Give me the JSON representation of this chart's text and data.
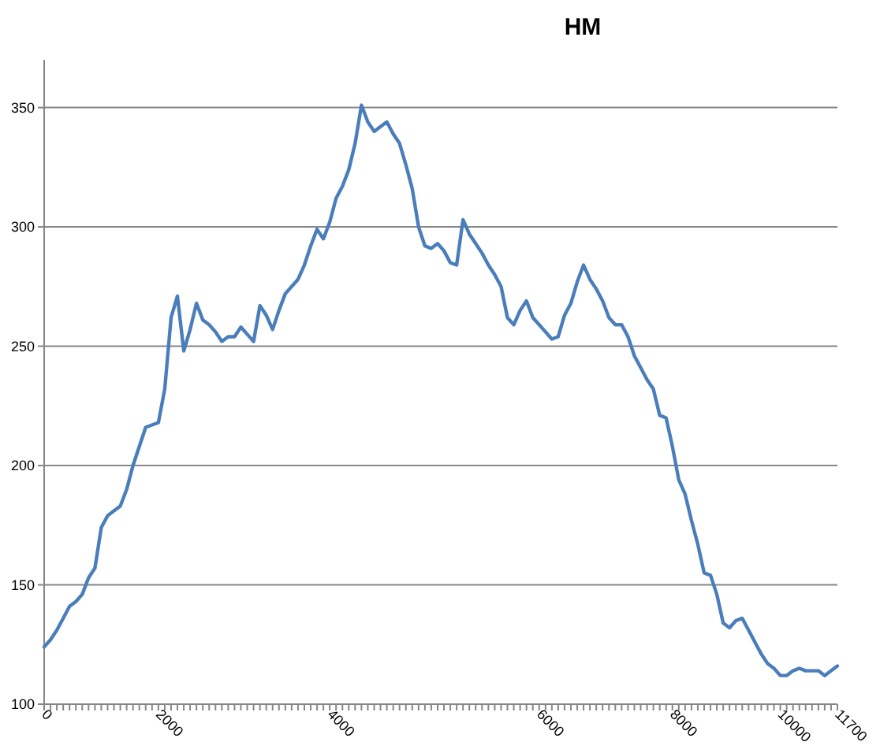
{
  "chart_data": {
    "type": "line",
    "title": "HM",
    "categories": [
      "0",
      null,
      null,
      null,
      null,
      null,
      null,
      null,
      null,
      null,
      null,
      null,
      null,
      null,
      null,
      null,
      null,
      null,
      "2000",
      null,
      null,
      null,
      null,
      null,
      null,
      null,
      null,
      null,
      null,
      null,
      null,
      null,
      null,
      null,
      null,
      null,
      null,
      null,
      null,
      null,
      null,
      null,
      null,
      null,
      null,
      "4000",
      null,
      null,
      null,
      null,
      null,
      null,
      null,
      null,
      null,
      null,
      null,
      null,
      null,
      null,
      null,
      null,
      null,
      null,
      null,
      null,
      null,
      null,
      null,
      null,
      null,
      null,
      null,
      null,
      null,
      null,
      null,
      null,
      "6000",
      null,
      null,
      null,
      null,
      null,
      null,
      null,
      null,
      null,
      null,
      null,
      null,
      null,
      null,
      null,
      null,
      null,
      null,
      null,
      null,
      "8000",
      null,
      null,
      null,
      null,
      null,
      null,
      null,
      null,
      null,
      null,
      null,
      null,
      null,
      null,
      null,
      null,
      "10000",
      null,
      null,
      null,
      null,
      null,
      null,
      null,
      null,
      "11700"
    ],
    "series": [
      {
        "color": "#4a7ebb",
        "values": [
          124,
          127,
          131,
          136,
          141,
          143,
          146,
          153,
          157,
          174,
          179,
          181,
          183,
          190,
          200,
          208,
          216,
          217,
          218,
          232,
          262,
          271,
          248,
          257,
          268,
          261,
          259,
          256,
          252,
          254,
          254,
          258,
          255,
          252,
          267,
          263,
          257,
          265,
          272,
          275,
          278,
          284,
          292,
          299,
          295,
          302,
          312,
          317,
          324,
          335,
          351,
          344,
          340,
          342,
          344,
          339,
          335,
          326,
          316,
          300,
          292,
          291,
          293,
          290,
          285,
          284,
          303,
          297,
          293,
          289,
          284,
          280,
          275,
          262,
          259,
          265,
          269,
          262,
          259,
          256,
          253,
          254,
          263,
          268,
          277,
          284,
          278,
          274,
          269,
          262,
          259,
          259,
          254,
          246,
          241,
          236,
          232,
          221,
          220,
          208,
          194,
          188,
          177,
          167,
          155,
          154,
          146,
          134,
          132,
          135,
          136,
          131,
          126,
          121,
          117,
          115,
          112,
          112,
          114,
          115,
          114,
          114,
          114,
          112,
          114,
          116
        ]
      }
    ],
    "ylim": [
      100,
      370
    ],
    "yticks": [
      100,
      150,
      200,
      250,
      300,
      350
    ],
    "grid": "y",
    "marker": "none",
    "line_style": "solid"
  }
}
